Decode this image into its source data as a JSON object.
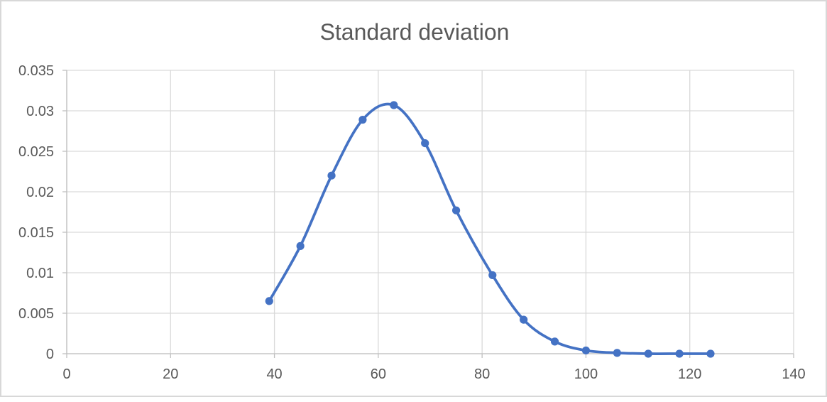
{
  "chart_data": {
    "type": "line",
    "title": "Standard deviation",
    "x": [
      39,
      45,
      51,
      57,
      63,
      69,
      75,
      82,
      88,
      94,
      100,
      106,
      112,
      118,
      124
    ],
    "series": [
      {
        "name": "Standard deviation",
        "values": [
          0.0065,
          0.0133,
          0.022,
          0.0289,
          0.0307,
          0.026,
          0.0177,
          0.0097,
          0.0042,
          0.0015,
          0.0004,
          0.0001,
          0,
          0,
          0
        ]
      }
    ],
    "xlabel": "",
    "ylabel": "",
    "xlim": [
      0,
      140
    ],
    "ylim": [
      0,
      0.035
    ],
    "x_tick_labels": [
      "0",
      "20",
      "40",
      "60",
      "80",
      "100",
      "120",
      "140"
    ],
    "y_tick_labels": [
      "0",
      "0.005",
      "0.01",
      "0.015",
      "0.02",
      "0.025",
      "0.03",
      "0.035"
    ],
    "grid": "on",
    "legend": "none",
    "line_style": "smooth",
    "marker": "circle",
    "colors": {
      "line": "#4472C4",
      "marker": "#4472C4",
      "gridline": "#D9D9D9",
      "axis": "#C0C0C0",
      "tick_label": "#595959",
      "title": "#595959",
      "background": "#FFFFFF",
      "frame_border": "#D8D8D8"
    }
  }
}
